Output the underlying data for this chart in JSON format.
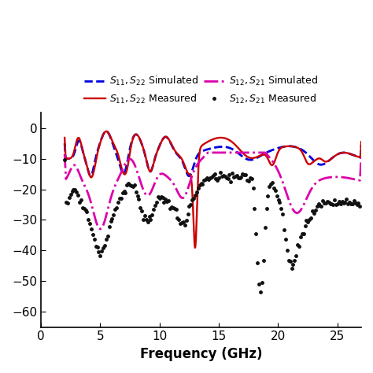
{
  "xlim": [
    2,
    27
  ],
  "ylim": [
    -65,
    5
  ],
  "xticks": [
    0,
    5,
    10,
    15,
    20,
    25
  ],
  "yticks": [
    0,
    -10,
    -20,
    -30,
    -40,
    -50,
    -60
  ],
  "xlabel": "Frequency (GHz)",
  "bg_color": "#ffffff",
  "line_colors": {
    "s11_sim": "#0000dd",
    "s11_meas": "#cc0000",
    "s12_sim": "#dd00aa",
    "s12_meas": "#111111"
  },
  "legend": {
    "s11_sim_label": "$S_{11},S_{22}$ Simulated",
    "s11_meas_label": "$S_{11},S_{22}$ Measured",
    "s12_sim_label": "$S_{12},S_{21}$ Simulated",
    "s12_meas_label": "$S_{12},S_{21}$ Measured"
  }
}
